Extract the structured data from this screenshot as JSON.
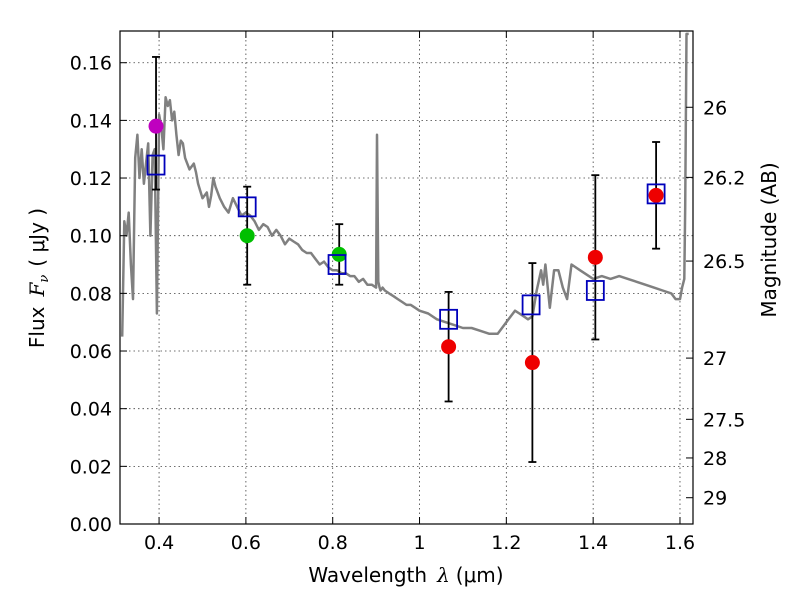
{
  "chart_data": {
    "type": "scatter",
    "xlabel": "Wavelength",
    "xlabel_symbol": "λ",
    "xlabel_unit": "(μm)",
    "ylabel": "Flux",
    "ylabel_symbol": "F",
    "ylabel_subscript": "ν",
    "ylabel_unit": "( μJy )",
    "y2label": "Magnitude (AB)",
    "xlim": [
      0.31,
      1.63
    ],
    "ylim": [
      0.0,
      0.171
    ],
    "grid": true,
    "x_ticks": [
      0.4,
      0.6,
      0.8,
      1.0,
      1.2,
      1.4,
      1.6
    ],
    "x_tick_labels": [
      "0.4",
      "0.6",
      "0.8",
      "1",
      "1.2",
      "1.4",
      "1.6"
    ],
    "y_ticks": [
      0.0,
      0.02,
      0.04,
      0.06,
      0.08,
      0.1,
      0.12,
      0.14,
      0.16
    ],
    "y_tick_labels": [
      "0.00",
      "0.02",
      "0.04",
      "0.06",
      "0.08",
      "0.10",
      "0.12",
      "0.14",
      "0.16"
    ],
    "y2_ticks": [
      {
        "label": "26",
        "mag": 26.0
      },
      {
        "label": "26.2",
        "mag": 26.2
      },
      {
        "label": "26.5",
        "mag": 26.5
      },
      {
        "label": "27",
        "mag": 27.0
      },
      {
        "label": "27.5",
        "mag": 27.5
      },
      {
        "label": "28",
        "mag": 28.0
      },
      {
        "label": "29",
        "mag": 29.0
      }
    ],
    "colors": {
      "model": "#808080",
      "magenta": "#bf00bf",
      "green": "#00bf00",
      "red": "#ee0000",
      "model_box": "#0000bb",
      "errorbar": "#000000"
    },
    "model_spectrum": {
      "x": [
        0.315,
        0.32,
        0.325,
        0.33,
        0.335,
        0.34,
        0.345,
        0.35,
        0.355,
        0.36,
        0.365,
        0.37,
        0.375,
        0.38,
        0.385,
        0.39,
        0.395,
        0.4,
        0.405,
        0.41,
        0.415,
        0.42,
        0.425,
        0.43,
        0.435,
        0.44,
        0.445,
        0.45,
        0.455,
        0.46,
        0.47,
        0.48,
        0.485,
        0.49,
        0.5,
        0.51,
        0.515,
        0.52,
        0.525,
        0.53,
        0.54,
        0.55,
        0.56,
        0.57,
        0.58,
        0.59,
        0.6,
        0.61,
        0.62,
        0.63,
        0.64,
        0.65,
        0.66,
        0.67,
        0.68,
        0.69,
        0.7,
        0.71,
        0.72,
        0.73,
        0.74,
        0.75,
        0.76,
        0.77,
        0.78,
        0.79,
        0.8,
        0.81,
        0.82,
        0.83,
        0.84,
        0.85,
        0.86,
        0.87,
        0.88,
        0.89,
        0.9,
        0.902,
        0.905,
        0.908,
        0.91,
        0.915,
        0.92,
        0.93,
        0.94,
        0.95,
        0.96,
        0.97,
        0.98,
        0.99,
        1.0,
        1.02,
        1.04,
        1.06,
        1.08,
        1.1,
        1.12,
        1.14,
        1.16,
        1.18,
        1.19,
        1.2,
        1.21,
        1.22,
        1.23,
        1.24,
        1.25,
        1.26,
        1.27,
        1.28,
        1.285,
        1.29,
        1.3,
        1.31,
        1.32,
        1.33,
        1.34,
        1.35,
        1.36,
        1.37,
        1.38,
        1.4,
        1.42,
        1.44,
        1.46,
        1.48,
        1.5,
        1.52,
        1.54,
        1.56,
        1.58,
        1.59,
        1.6,
        1.605,
        1.61,
        1.612,
        1.615,
        1.62
      ],
      "y": [
        0.065,
        0.105,
        0.1,
        0.108,
        0.09,
        0.078,
        0.127,
        0.135,
        0.12,
        0.13,
        0.118,
        0.125,
        0.132,
        0.1,
        0.128,
        0.13,
        0.073,
        0.142,
        0.138,
        0.13,
        0.148,
        0.145,
        0.147,
        0.14,
        0.143,
        0.135,
        0.128,
        0.133,
        0.132,
        0.127,
        0.123,
        0.125,
        0.122,
        0.118,
        0.113,
        0.115,
        0.11,
        0.114,
        0.12,
        0.117,
        0.113,
        0.11,
        0.108,
        0.113,
        0.11,
        0.107,
        0.108,
        0.107,
        0.105,
        0.102,
        0.104,
        0.103,
        0.1,
        0.102,
        0.1,
        0.097,
        0.099,
        0.098,
        0.097,
        0.095,
        0.094,
        0.094,
        0.092,
        0.09,
        0.091,
        0.089,
        0.088,
        0.088,
        0.087,
        0.087,
        0.086,
        0.086,
        0.084,
        0.085,
        0.083,
        0.083,
        0.082,
        0.135,
        0.084,
        0.082,
        0.081,
        0.082,
        0.081,
        0.08,
        0.079,
        0.078,
        0.077,
        0.076,
        0.076,
        0.075,
        0.074,
        0.073,
        0.071,
        0.07,
        0.069,
        0.068,
        0.068,
        0.067,
        0.066,
        0.066,
        0.068,
        0.07,
        0.072,
        0.074,
        0.073,
        0.072,
        0.071,
        0.072,
        0.081,
        0.088,
        0.083,
        0.09,
        0.075,
        0.088,
        0.088,
        0.082,
        0.078,
        0.09,
        0.089,
        0.088,
        0.087,
        0.085,
        0.086,
        0.085,
        0.086,
        0.085,
        0.084,
        0.083,
        0.082,
        0.081,
        0.08,
        0.078,
        0.078,
        0.082,
        0.085,
        0.11,
        0.17,
        0.17
      ],
      "color": "#808080"
    },
    "observed_points": [
      {
        "x": 0.393,
        "y": 0.138,
        "err_low": 0.022,
        "err_high": 0.024,
        "color": "#bf00bf"
      },
      {
        "x": 0.603,
        "y": 0.1,
        "err_low": 0.017,
        "err_high": 0.017,
        "color": "#00bf00"
      },
      {
        "x": 0.815,
        "y": 0.0935,
        "err_low": 0.0105,
        "err_high": 0.0105,
        "color": "#00bf00"
      },
      {
        "x": 1.067,
        "y": 0.0615,
        "err_low": 0.019,
        "err_high": 0.019,
        "color": "#ee0000"
      },
      {
        "x": 1.26,
        "y": 0.056,
        "err_low": 0.0345,
        "err_high": 0.0345,
        "color": "#ee0000"
      },
      {
        "x": 1.405,
        "y": 0.0925,
        "err_low": 0.0285,
        "err_high": 0.0285,
        "color": "#ee0000"
      },
      {
        "x": 1.545,
        "y": 0.114,
        "err_low": 0.0185,
        "err_high": 0.0185,
        "color": "#ee0000"
      }
    ],
    "model_photometry": [
      {
        "x": 0.393,
        "y": 0.1245
      },
      {
        "x": 0.603,
        "y": 0.11
      },
      {
        "x": 0.81,
        "y": 0.09
      },
      {
        "x": 1.067,
        "y": 0.071
      },
      {
        "x": 1.257,
        "y": 0.076
      },
      {
        "x": 1.405,
        "y": 0.081
      },
      {
        "x": 1.545,
        "y": 0.1145
      }
    ]
  }
}
